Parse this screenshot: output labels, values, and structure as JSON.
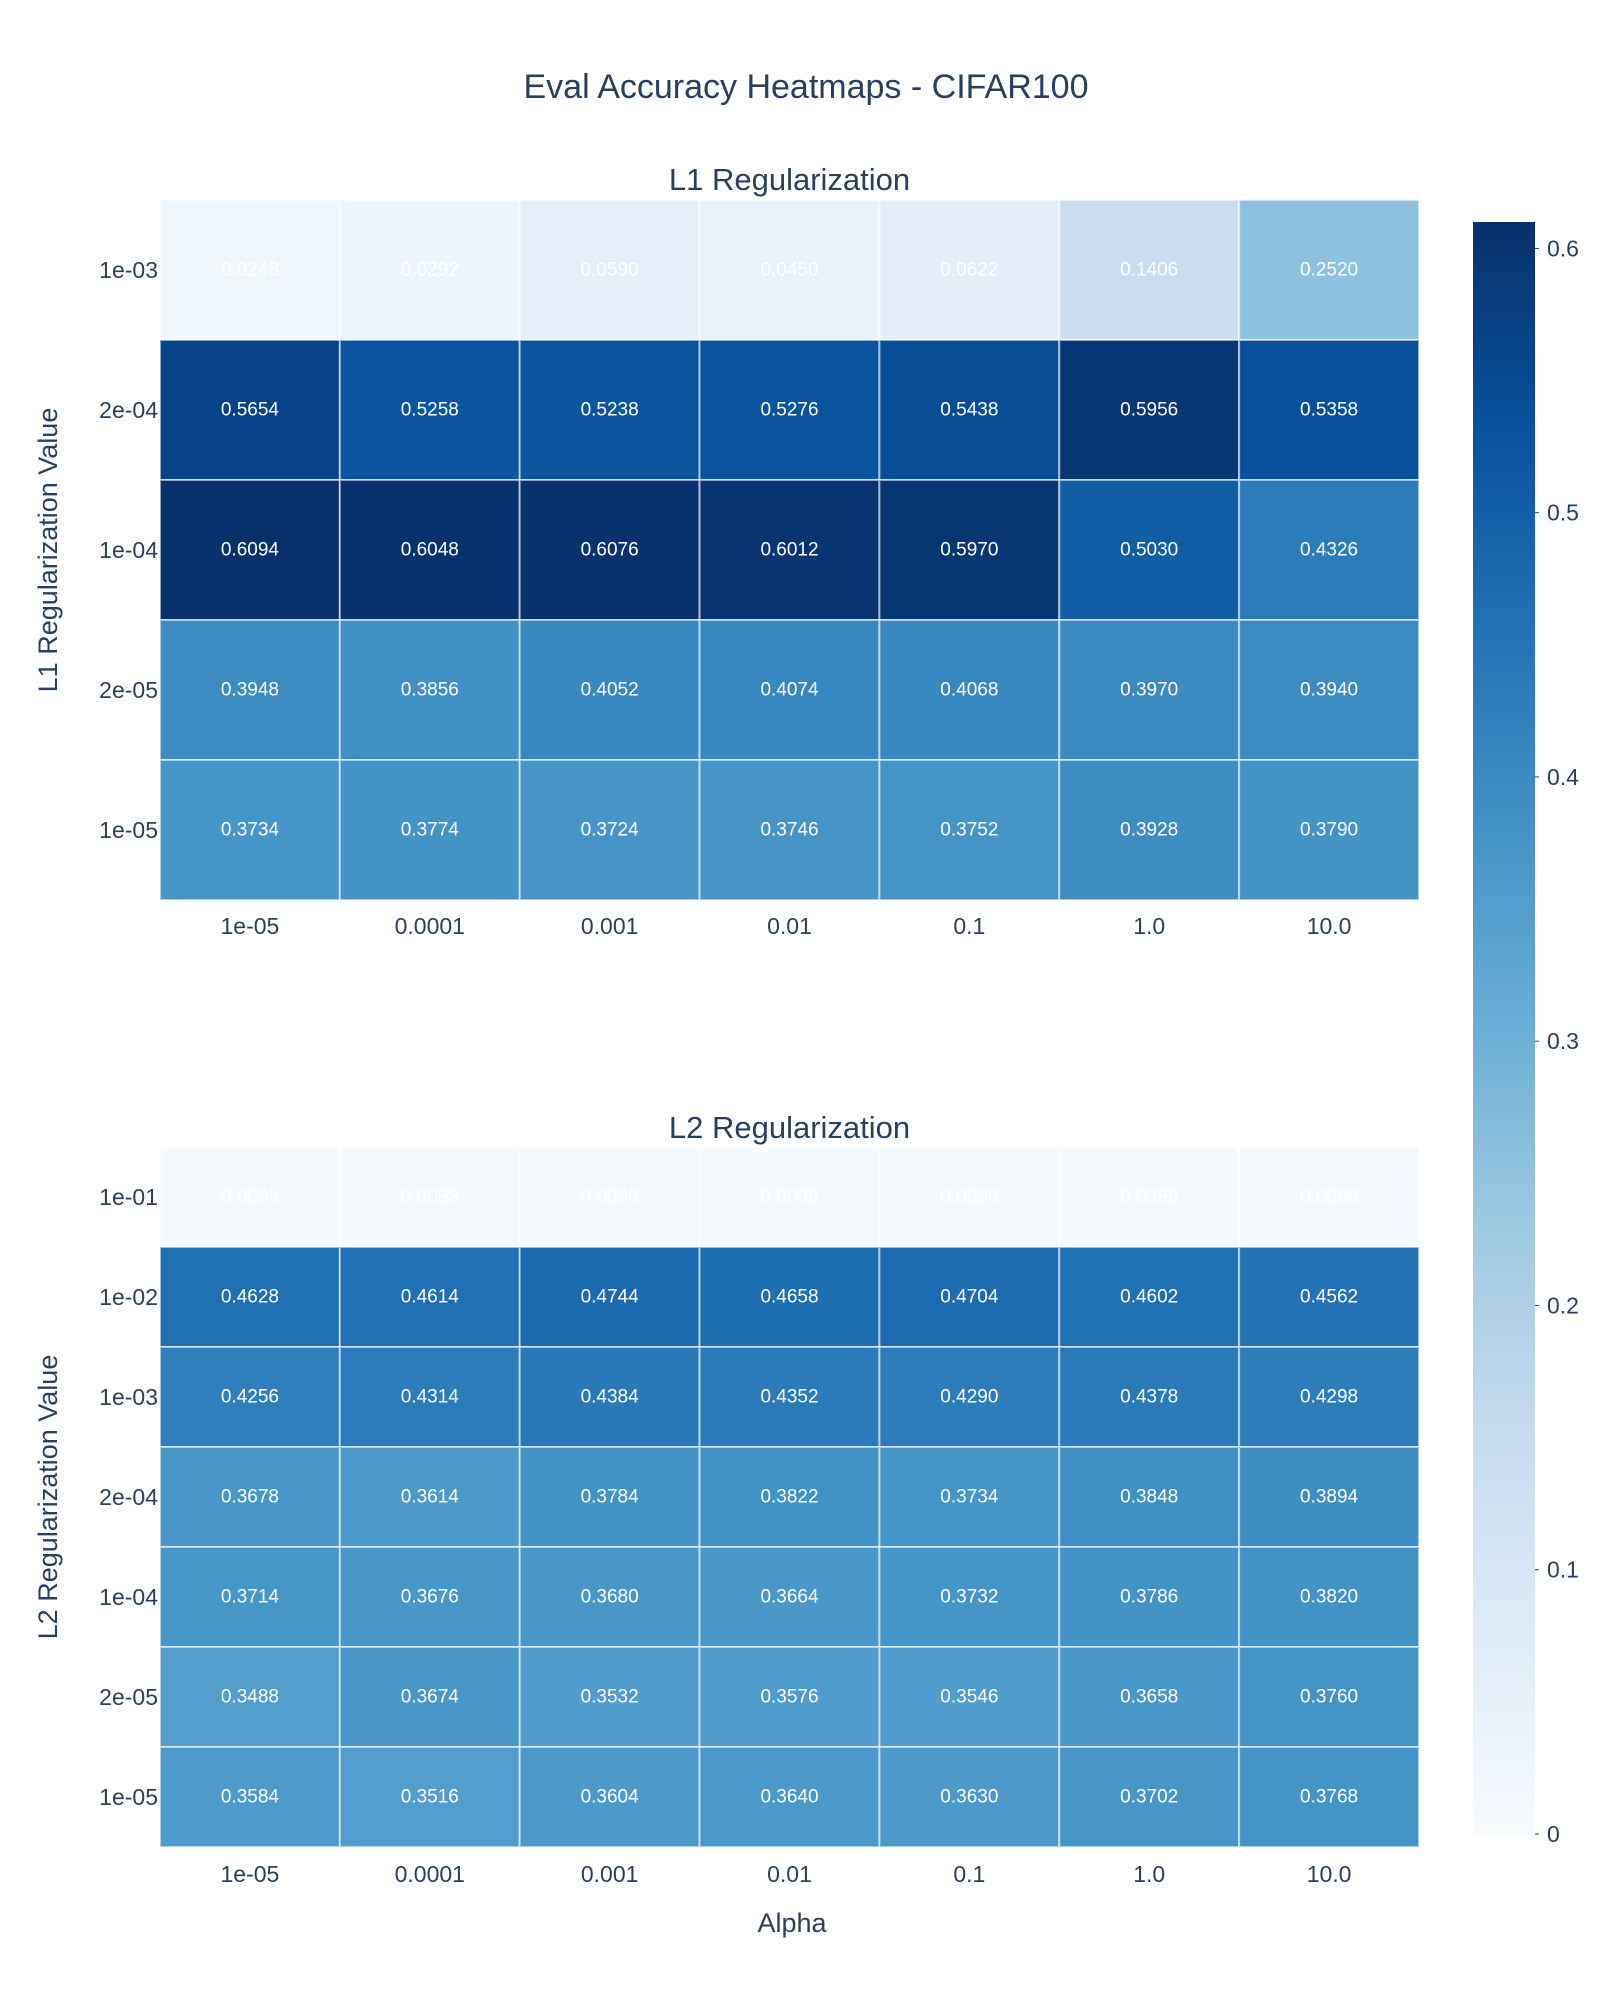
{
  "chart_data": {
    "title": "Eval Accuracy Heatmaps - CIFAR100",
    "xlabel": "Alpha",
    "x_categories": [
      "1e-05",
      "0.0001",
      "0.001",
      "0.01",
      "0.1",
      "1.0",
      "10.0"
    ],
    "colorscale": "Blues",
    "zmin": 0,
    "zmax": 0.61,
    "colorbar_ticks": [
      0,
      0.1,
      0.2,
      0.3,
      0.4,
      0.5,
      0.6
    ],
    "colorbar_tick_labels": [
      "0",
      "0.1",
      "0.2",
      "0.3",
      "0.4",
      "0.5",
      "0.6"
    ],
    "panels": [
      {
        "type": "heatmap",
        "subtitle": "L1 Regularization",
        "ylabel": "L1 Regularization Value",
        "rows": [
          "1e-03",
          "2e-04",
          "1e-04",
          "2e-05",
          "1e-05"
        ],
        "values": [
          [
            0.0248,
            0.0292,
            0.059,
            0.045,
            0.0622,
            0.1406,
            0.252
          ],
          [
            0.5654,
            0.5258,
            0.5238,
            0.5276,
            0.5438,
            0.5956,
            0.5358
          ],
          [
            0.6094,
            0.6048,
            0.6076,
            0.6012,
            0.597,
            0.503,
            0.4326
          ],
          [
            0.3948,
            0.3856,
            0.4052,
            0.4074,
            0.4068,
            0.397,
            0.394
          ],
          [
            0.3734,
            0.3774,
            0.3724,
            0.3746,
            0.3752,
            0.3928,
            0.379
          ]
        ],
        "labels": [
          [
            "0.0248",
            "0.0292",
            "0.0590",
            "0.0450",
            "0.0622",
            "0.1406",
            "0.2520"
          ],
          [
            "0.5654",
            "0.5258",
            "0.5238",
            "0.5276",
            "0.5438",
            "0.5956",
            "0.5358"
          ],
          [
            "0.6094",
            "0.6048",
            "0.6076",
            "0.6012",
            "0.5970",
            "0.5030",
            "0.4326"
          ],
          [
            "0.3948",
            "0.3856",
            "0.4052",
            "0.4074",
            "0.4068",
            "0.3970",
            "0.3940"
          ],
          [
            "0.3734",
            "0.3774",
            "0.3724",
            "0.3746",
            "0.3752",
            "0.3928",
            "0.3790"
          ]
        ]
      },
      {
        "type": "heatmap",
        "subtitle": "L2 Regularization",
        "ylabel": "L2 Regularization Value",
        "rows": [
          "1e-01",
          "1e-02",
          "1e-03",
          "2e-04",
          "1e-04",
          "2e-05",
          "1e-05"
        ],
        "values": [
          [
            0.0098,
            0.0098,
            0.0098,
            0.0098,
            0.0098,
            0.0098,
            0.0098
          ],
          [
            0.4628,
            0.4614,
            0.4744,
            0.4658,
            0.4704,
            0.4602,
            0.4562
          ],
          [
            0.4256,
            0.4314,
            0.4384,
            0.4352,
            0.429,
            0.4378,
            0.4298
          ],
          [
            0.3678,
            0.3614,
            0.3784,
            0.3822,
            0.3734,
            0.3848,
            0.3894
          ],
          [
            0.3714,
            0.3676,
            0.368,
            0.3664,
            0.3732,
            0.3786,
            0.382
          ],
          [
            0.3488,
            0.3674,
            0.3532,
            0.3576,
            0.3546,
            0.3658,
            0.376
          ],
          [
            0.3584,
            0.3516,
            0.3604,
            0.364,
            0.363,
            0.3702,
            0.3768
          ]
        ],
        "labels": [
          [
            "0.0098",
            "0.0098",
            "0.0098",
            "0.0098",
            "0.0098",
            "0.0098",
            "0.0098"
          ],
          [
            "0.4628",
            "0.4614",
            "0.4744",
            "0.4658",
            "0.4704",
            "0.4602",
            "0.4562"
          ],
          [
            "0.4256",
            "0.4314",
            "0.4384",
            "0.4352",
            "0.4290",
            "0.4378",
            "0.4298"
          ],
          [
            "0.3678",
            "0.3614",
            "0.3784",
            "0.3822",
            "0.3734",
            "0.3848",
            "0.3894"
          ],
          [
            "0.3714",
            "0.3676",
            "0.3680",
            "0.3664",
            "0.3732",
            "0.3786",
            "0.3820"
          ],
          [
            "0.3488",
            "0.3674",
            "0.3532",
            "0.3576",
            "0.3546",
            "0.3658",
            "0.3760"
          ],
          [
            "0.3584",
            "0.3516",
            "0.3604",
            "0.3640",
            "0.3630",
            "0.3702",
            "0.3768"
          ]
        ]
      }
    ]
  }
}
